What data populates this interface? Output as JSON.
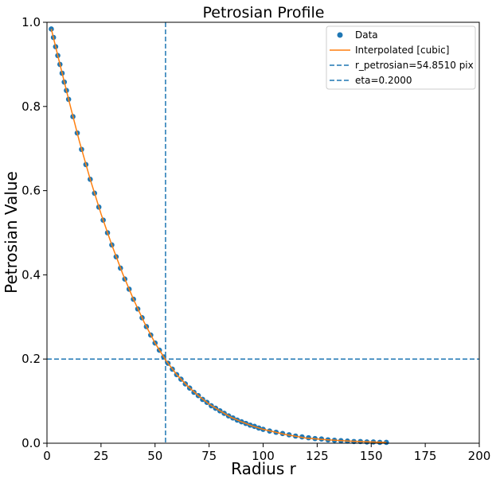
{
  "chart_data": {
    "type": "scatter",
    "title": "Petrosian Profile",
    "xlabel": "Radius r",
    "ylabel": "Petrosian Value",
    "xlim": [
      0,
      200
    ],
    "ylim": [
      0,
      1.0
    ],
    "xticks": [
      "0",
      "25",
      "50",
      "75",
      "100",
      "125",
      "150",
      "175",
      "200"
    ],
    "yticks": [
      "0.0",
      "0.2",
      "0.4",
      "0.6",
      "0.8",
      "1.0"
    ],
    "xtick_values": [
      0,
      25,
      50,
      75,
      100,
      125,
      150,
      175,
      200
    ],
    "ytick_values": [
      0,
      0.2,
      0.4,
      0.6,
      0.8,
      1.0
    ],
    "legend_position": "top-right",
    "grid": false,
    "colors": {
      "data": "#1f77b4",
      "interpolated": "#ff7f0e",
      "reference": "#1f77b4"
    },
    "series": [
      {
        "name": "Data",
        "kind": "scatter",
        "x": [
          2,
          3,
          4,
          5,
          6,
          7,
          8,
          9,
          10,
          12,
          14,
          16,
          18,
          20,
          22,
          24,
          26,
          28,
          30,
          32,
          34,
          36,
          38,
          40,
          42,
          44,
          46,
          48,
          50,
          52,
          54,
          56,
          58,
          60,
          62,
          64,
          66,
          68,
          70,
          72,
          74,
          76,
          78,
          80,
          82,
          84,
          86,
          88,
          90,
          92,
          94,
          96,
          98,
          100,
          103,
          106,
          109,
          112,
          115,
          118,
          121,
          124,
          127,
          130,
          133,
          136,
          139,
          142,
          145,
          148,
          151,
          154,
          157
        ],
        "y": [
          0.984,
          0.964,
          0.942,
          0.921,
          0.9,
          0.879,
          0.858,
          0.838,
          0.817,
          0.776,
          0.737,
          0.698,
          0.662,
          0.627,
          0.594,
          0.561,
          0.53,
          0.5,
          0.471,
          0.443,
          0.416,
          0.39,
          0.366,
          0.342,
          0.319,
          0.298,
          0.277,
          0.257,
          0.238,
          0.221,
          0.205,
          0.19,
          0.176,
          0.163,
          0.152,
          0.141,
          0.131,
          0.121,
          0.113,
          0.104,
          0.097,
          0.089,
          0.083,
          0.077,
          0.071,
          0.065,
          0.06,
          0.055,
          0.051,
          0.047,
          0.043,
          0.04,
          0.036,
          0.033,
          0.029,
          0.026,
          0.023,
          0.02,
          0.017,
          0.015,
          0.013,
          0.011,
          0.01,
          0.008,
          0.007,
          0.006,
          0.005,
          0.004,
          0.004,
          0.003,
          0.003,
          0.002,
          0.002
        ]
      },
      {
        "name": "Interpolated [cubic]",
        "kind": "line",
        "x": [
          2,
          5,
          10,
          15,
          20,
          25,
          30,
          35,
          40,
          45,
          50,
          55,
          60,
          65,
          70,
          75,
          80,
          85,
          90,
          95,
          100,
          110,
          120,
          130,
          140,
          150,
          157
        ],
        "y": [
          0.984,
          0.921,
          0.817,
          0.717,
          0.627,
          0.545,
          0.471,
          0.403,
          0.342,
          0.287,
          0.238,
          0.197,
          0.163,
          0.136,
          0.113,
          0.093,
          0.077,
          0.062,
          0.051,
          0.041,
          0.033,
          0.021,
          0.012,
          0.008,
          0.005,
          0.003,
          0.002
        ]
      }
    ],
    "reference_lines": [
      {
        "name": "r_petrosian=54.8510 pix",
        "orientation": "vertical",
        "value": 54.851
      },
      {
        "name": "eta=0.2000",
        "orientation": "horizontal",
        "value": 0.2
      }
    ]
  }
}
